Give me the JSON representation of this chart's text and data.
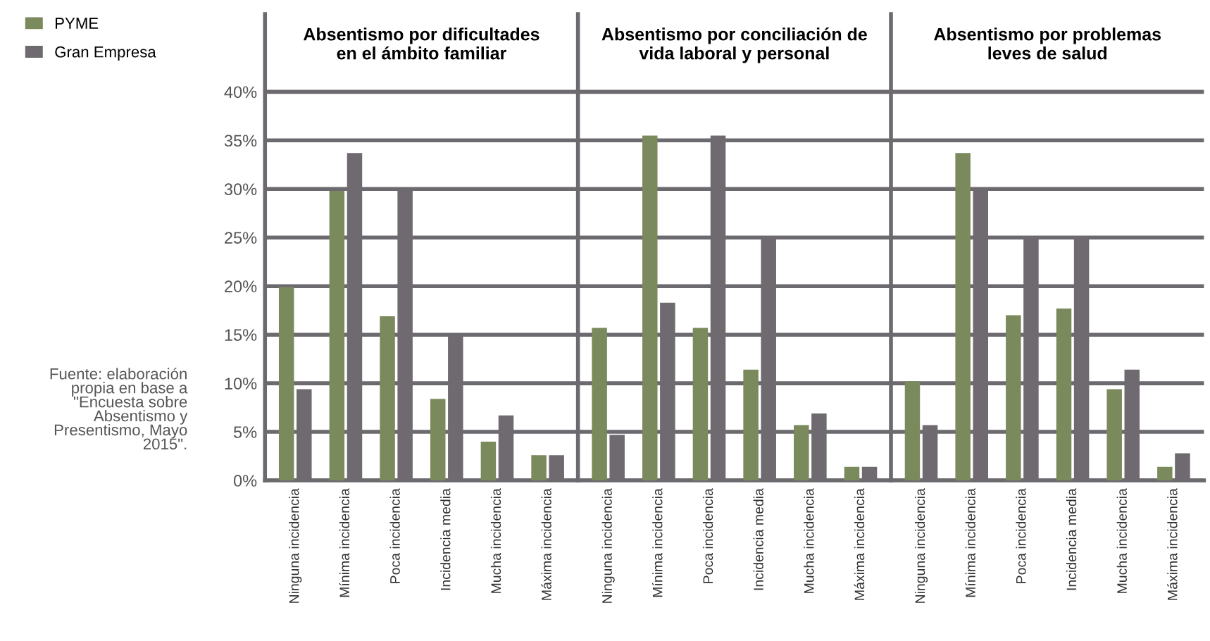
{
  "chart_data": [
    {
      "type": "bar",
      "title": "Absentismo por dificultades\nen el ámbito familiar",
      "categories": [
        "Ninguna incidencia",
        "Mínima incidencia",
        "Poca incidencia",
        "Incidencia media",
        "Mucha incidencia",
        "Máxima incidencia"
      ],
      "series": [
        {
          "name": "PYME",
          "color": "#7b8a5c",
          "values": [
            19.9,
            29.8,
            16.9,
            8.4,
            4.0,
            2.6
          ]
        },
        {
          "name": "Gran Empresa",
          "color": "#6f6a70",
          "values": [
            9.4,
            33.7,
            29.8,
            14.8,
            6.7,
            2.6
          ]
        }
      ],
      "ylim": [
        0,
        48
      ],
      "yticks": [
        {
          "value": 0,
          "label": "0%"
        },
        {
          "value": 5,
          "label": "5%"
        },
        {
          "value": 10,
          "label": "10%"
        },
        {
          "value": 15,
          "label": "15%"
        },
        {
          "value": 20,
          "label": "20%"
        },
        {
          "value": 25,
          "label": "25%"
        },
        {
          "value": 30,
          "label": "30%"
        },
        {
          "value": 35,
          "label": "35%"
        },
        {
          "value": 40,
          "label": "40%"
        }
      ],
      "grid": "y",
      "legend": "top left",
      "annotations": [
        "Fuente: elaboración\npropia en base a\n\"Encuesta sobre\nAbsentismo y\nPresentismo, Mayo\n2015\"."
      ]
    },
    {
      "type": "bar",
      "title": "Absentismo por conciliación de\nvida laboral y personal",
      "categories": [
        "Ninguna incidencia",
        "Mínima incidencia",
        "Poca incidencia",
        "Incidencia media",
        "Mucha incidencia",
        "Máxima incidencia"
      ],
      "series": [
        {
          "color": "#7b8a5c",
          "values": [
            15.7,
            35.5,
            15.7,
            11.4,
            5.7,
            1.4
          ]
        },
        {
          "color": "#6f6a70",
          "values": [
            4.7,
            18.3,
            35.5,
            25.0,
            6.9,
            1.4
          ]
        }
      ],
      "ylim": [
        0,
        48
      ],
      "grid": "y",
      "tick_labels": "x"
    },
    {
      "type": "bar",
      "title": "Absentismo por problemas\nleves de salud",
      "categories": [
        "Ninguna incidencia",
        "Mínima incidencia",
        "Poca incidencia",
        "Incidencia media",
        "Mucha incidencia",
        "Máxima incidencia"
      ],
      "series": [
        {
          "color": "#7b8a5c",
          "values": [
            10.2,
            33.7,
            17.0,
            17.7,
            9.4,
            1.4
          ]
        },
        {
          "color": "#6f6a70",
          "values": [
            5.7,
            29.8,
            25.0,
            25.0,
            11.4,
            2.8
          ]
        }
      ],
      "ylim": [
        0,
        48
      ],
      "grid": "y",
      "tick_labels": "x"
    }
  ]
}
